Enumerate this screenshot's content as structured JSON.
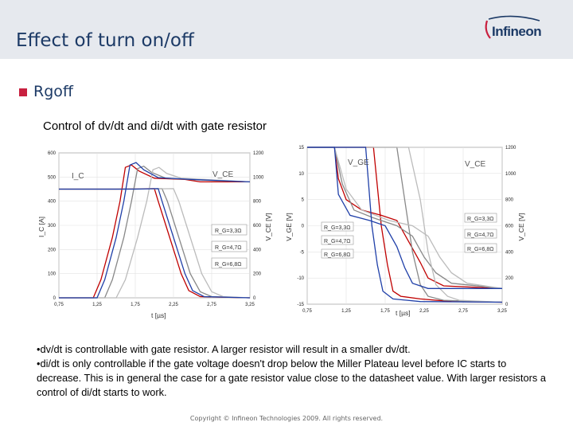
{
  "header": {
    "title": "Effect of turn on/off"
  },
  "logo": {
    "text": "Infineon",
    "color": "#1c3a66",
    "accent": "#c8203f"
  },
  "bullet": {
    "text": "Rgoff",
    "color": "#c8203f"
  },
  "subtitle": "Control of dv/dt and di/dt with gate resistor",
  "chart_data": [
    {
      "type": "line",
      "title": "",
      "xlabel": "t [µs]",
      "ylabel_left": "I_C [A]",
      "ylabel_right": "V_CE [V]",
      "x_ticks": [
        "0,75",
        "1,25",
        "1,75",
        "2,25",
        "2,75",
        "3,25"
      ],
      "x_range": [
        0.75,
        3.25
      ],
      "y_left_ticks": [
        "0",
        "100",
        "200",
        "300",
        "400",
        "500",
        "600"
      ],
      "y_left_range": [
        0,
        600
      ],
      "y_right_ticks": [
        "0",
        "200",
        "400",
        "600",
        "800",
        "1000",
        "1200"
      ],
      "y_right_range": [
        0,
        1200
      ],
      "curve_labels": [
        "I_C",
        "V_CE"
      ],
      "series": [
        {
          "name": "R_G=3,3Ω",
          "color": "#c00000",
          "ic": [
            [
              0.75,
              450
            ],
            [
              1.5,
              450
            ],
            [
              2.0,
              452
            ],
            [
              2.05,
              400
            ],
            [
              2.15,
              300
            ],
            [
              2.25,
              200
            ],
            [
              2.35,
              100
            ],
            [
              2.45,
              30
            ],
            [
              2.6,
              5
            ],
            [
              3.25,
              0
            ]
          ],
          "vce": [
            [
              0.75,
              0
            ],
            [
              1.2,
              0
            ],
            [
              1.3,
              150
            ],
            [
              1.45,
              500
            ],
            [
              1.55,
              800
            ],
            [
              1.62,
              1080
            ],
            [
              1.7,
              1100
            ],
            [
              1.8,
              1050
            ],
            [
              2.0,
              990
            ],
            [
              2.4,
              980
            ],
            [
              2.6,
              960
            ],
            [
              3.25,
              960
            ]
          ]
        },
        {
          "name": "R_G=4,7Ω",
          "color": "#888888",
          "ic": [
            [
              0.75,
              450
            ],
            [
              1.6,
              450
            ],
            [
              2.1,
              452
            ],
            [
              2.17,
              400
            ],
            [
              2.27,
              300
            ],
            [
              2.37,
              200
            ],
            [
              2.47,
              100
            ],
            [
              2.6,
              25
            ],
            [
              2.75,
              5
            ],
            [
              3.25,
              0
            ]
          ],
          "vce": [
            [
              0.75,
              0
            ],
            [
              1.35,
              0
            ],
            [
              1.45,
              150
            ],
            [
              1.6,
              500
            ],
            [
              1.7,
              800
            ],
            [
              1.78,
              1070
            ],
            [
              1.86,
              1090
            ],
            [
              1.96,
              1040
            ],
            [
              2.15,
              990
            ],
            [
              2.6,
              975
            ],
            [
              3.25,
              960
            ]
          ]
        },
        {
          "name": "R_G=6,8Ω",
          "color": "#bbbbbb",
          "ic": [
            [
              0.75,
              450
            ],
            [
              1.8,
              450
            ],
            [
              2.25,
              452
            ],
            [
              2.32,
              400
            ],
            [
              2.42,
              300
            ],
            [
              2.52,
              200
            ],
            [
              2.62,
              100
            ],
            [
              2.75,
              25
            ],
            [
              2.9,
              5
            ],
            [
              3.25,
              0
            ]
          ],
          "vce": [
            [
              0.75,
              0
            ],
            [
              1.5,
              0
            ],
            [
              1.62,
              150
            ],
            [
              1.78,
              500
            ],
            [
              1.9,
              800
            ],
            [
              1.98,
              1060
            ],
            [
              2.06,
              1080
            ],
            [
              2.16,
              1030
            ],
            [
              2.35,
              990
            ],
            [
              2.8,
              975
            ],
            [
              3.25,
              960
            ]
          ]
        },
        {
          "name": "",
          "color": "#1f3fa8",
          "ic": [
            [
              0.75,
              450
            ],
            [
              1.75,
              450
            ],
            [
              2.05,
              452
            ],
            [
              2.1,
              400
            ],
            [
              2.2,
              300
            ],
            [
              2.3,
              200
            ],
            [
              2.4,
              100
            ],
            [
              2.5,
              30
            ],
            [
              2.65,
              5
            ],
            [
              3.25,
              0
            ]
          ],
          "vce": [
            [
              0.75,
              0
            ],
            [
              1.25,
              0
            ],
            [
              1.35,
              150
            ],
            [
              1.5,
              500
            ],
            [
              1.6,
              800
            ],
            [
              1.68,
              1100
            ],
            [
              1.76,
              1120
            ],
            [
              1.86,
              1060
            ],
            [
              2.05,
              995
            ],
            [
              2.5,
              980
            ],
            [
              3.25,
              960
            ]
          ]
        }
      ],
      "legend_boxes": [
        "R_G=3,3Ω",
        "R_G=4,7Ω",
        "R_G=6,8Ω"
      ]
    },
    {
      "type": "line",
      "title": "",
      "xlabel": "t [µs]",
      "ylabel_left": "V_GE [V]",
      "ylabel_right": "V_CE [V]",
      "x_ticks": [
        "0,75",
        "1,25",
        "1,75",
        "2,25",
        "2,75",
        "3,25"
      ],
      "x_range": [
        0.75,
        3.25
      ],
      "y_left_ticks": [
        "-15",
        "-10",
        "-5",
        "0",
        "5",
        "10",
        "15"
      ],
      "y_left_range": [
        -15,
        15
      ],
      "y_right_ticks": [
        "0",
        "200",
        "400",
        "600",
        "800",
        "1000",
        "1200"
      ],
      "y_right_range": [
        0,
        1200
      ],
      "curve_labels": [
        "V_GE",
        "V_CE"
      ],
      "series": [
        {
          "name": "R_G=3,3Ω",
          "color": "#c00000",
          "vge": [
            [
              0.75,
              15
            ],
            [
              1.1,
              15
            ],
            [
              1.15,
              9
            ],
            [
              1.25,
              5
            ],
            [
              1.45,
              3
            ],
            [
              1.7,
              2
            ],
            [
              1.9,
              1
            ],
            [
              2.05,
              -3
            ],
            [
              2.2,
              -7
            ],
            [
              2.3,
              -10
            ],
            [
              2.5,
              -11.5
            ],
            [
              3.25,
              -12
            ]
          ],
          "vce": [
            [
              0.75,
              1200
            ],
            [
              1.4,
              1200
            ],
            [
              1.6,
              1200
            ],
            [
              1.7,
              600
            ],
            [
              1.78,
              300
            ],
            [
              1.85,
              100
            ],
            [
              1.95,
              60
            ],
            [
              2.2,
              40
            ],
            [
              2.6,
              20
            ],
            [
              3.25,
              15
            ]
          ]
        },
        {
          "name": "R_G=4,7Ω",
          "color": "#888888",
          "vge": [
            [
              0.75,
              15
            ],
            [
              1.1,
              15
            ],
            [
              1.2,
              8
            ],
            [
              1.35,
              3
            ],
            [
              1.6,
              1.5
            ],
            [
              1.9,
              0
            ],
            [
              2.1,
              -2
            ],
            [
              2.25,
              -6
            ],
            [
              2.4,
              -9
            ],
            [
              2.6,
              -11
            ],
            [
              3.25,
              -12
            ]
          ],
          "vce": [
            [
              0.75,
              1200
            ],
            [
              1.4,
              1200
            ],
            [
              1.9,
              1200
            ],
            [
              2.0,
              800
            ],
            [
              2.1,
              400
            ],
            [
              2.2,
              150
            ],
            [
              2.3,
              60
            ],
            [
              2.5,
              30
            ],
            [
              3.25,
              15
            ]
          ]
        },
        {
          "name": "R_G=6,8Ω",
          "color": "#bbbbbb",
          "vge": [
            [
              0.75,
              15
            ],
            [
              1.1,
              15
            ],
            [
              1.25,
              7
            ],
            [
              1.45,
              3
            ],
            [
              1.8,
              1
            ],
            [
              2.1,
              0
            ],
            [
              2.3,
              -2
            ],
            [
              2.45,
              -6
            ],
            [
              2.6,
              -9
            ],
            [
              2.8,
              -11
            ],
            [
              3.25,
              -12
            ]
          ],
          "vce": [
            [
              0.75,
              1200
            ],
            [
              1.4,
              1200
            ],
            [
              2.05,
              1200
            ],
            [
              2.2,
              800
            ],
            [
              2.3,
              400
            ],
            [
              2.4,
              150
            ],
            [
              2.55,
              60
            ],
            [
              2.7,
              30
            ],
            [
              3.25,
              15
            ]
          ]
        },
        {
          "name": "",
          "color": "#1f3fa8",
          "vge": [
            [
              0.75,
              15
            ],
            [
              1.1,
              15
            ],
            [
              1.15,
              6
            ],
            [
              1.3,
              2
            ],
            [
              1.55,
              1
            ],
            [
              1.75,
              0
            ],
            [
              1.9,
              -4
            ],
            [
              2.0,
              -8
            ],
            [
              2.1,
              -11
            ],
            [
              2.3,
              -12
            ],
            [
              3.25,
              -12
            ]
          ],
          "vce": [
            [
              0.75,
              1200
            ],
            [
              1.35,
              1200
            ],
            [
              1.5,
              1200
            ],
            [
              1.58,
              600
            ],
            [
              1.65,
              300
            ],
            [
              1.72,
              100
            ],
            [
              1.85,
              40
            ],
            [
              2.2,
              20
            ],
            [
              3.25,
              15
            ]
          ]
        }
      ],
      "legend_left": [
        "R_G=3,3Ω",
        "R_G=4,7Ω",
        "R_G=6,8Ω"
      ],
      "legend_right": [
        "R_G=3,3Ω",
        "R_G=4,7Ω",
        "R_G=6,8Ω"
      ]
    }
  ],
  "notes": [
    "•dv/dt is controllable with gate resistor. A larger resistor will result in a smaller dv/dt.",
    "•di/dt is only controllable if the gate voltage doesn't drop below the Miller Plateau level before IC starts to decrease. This is in general the case for a gate resistor value close to the datasheet value. With larger resistors a control of di/dt starts to work."
  ],
  "copyright": "Copyright © Infineon Technologies 2009. All rights reserved."
}
